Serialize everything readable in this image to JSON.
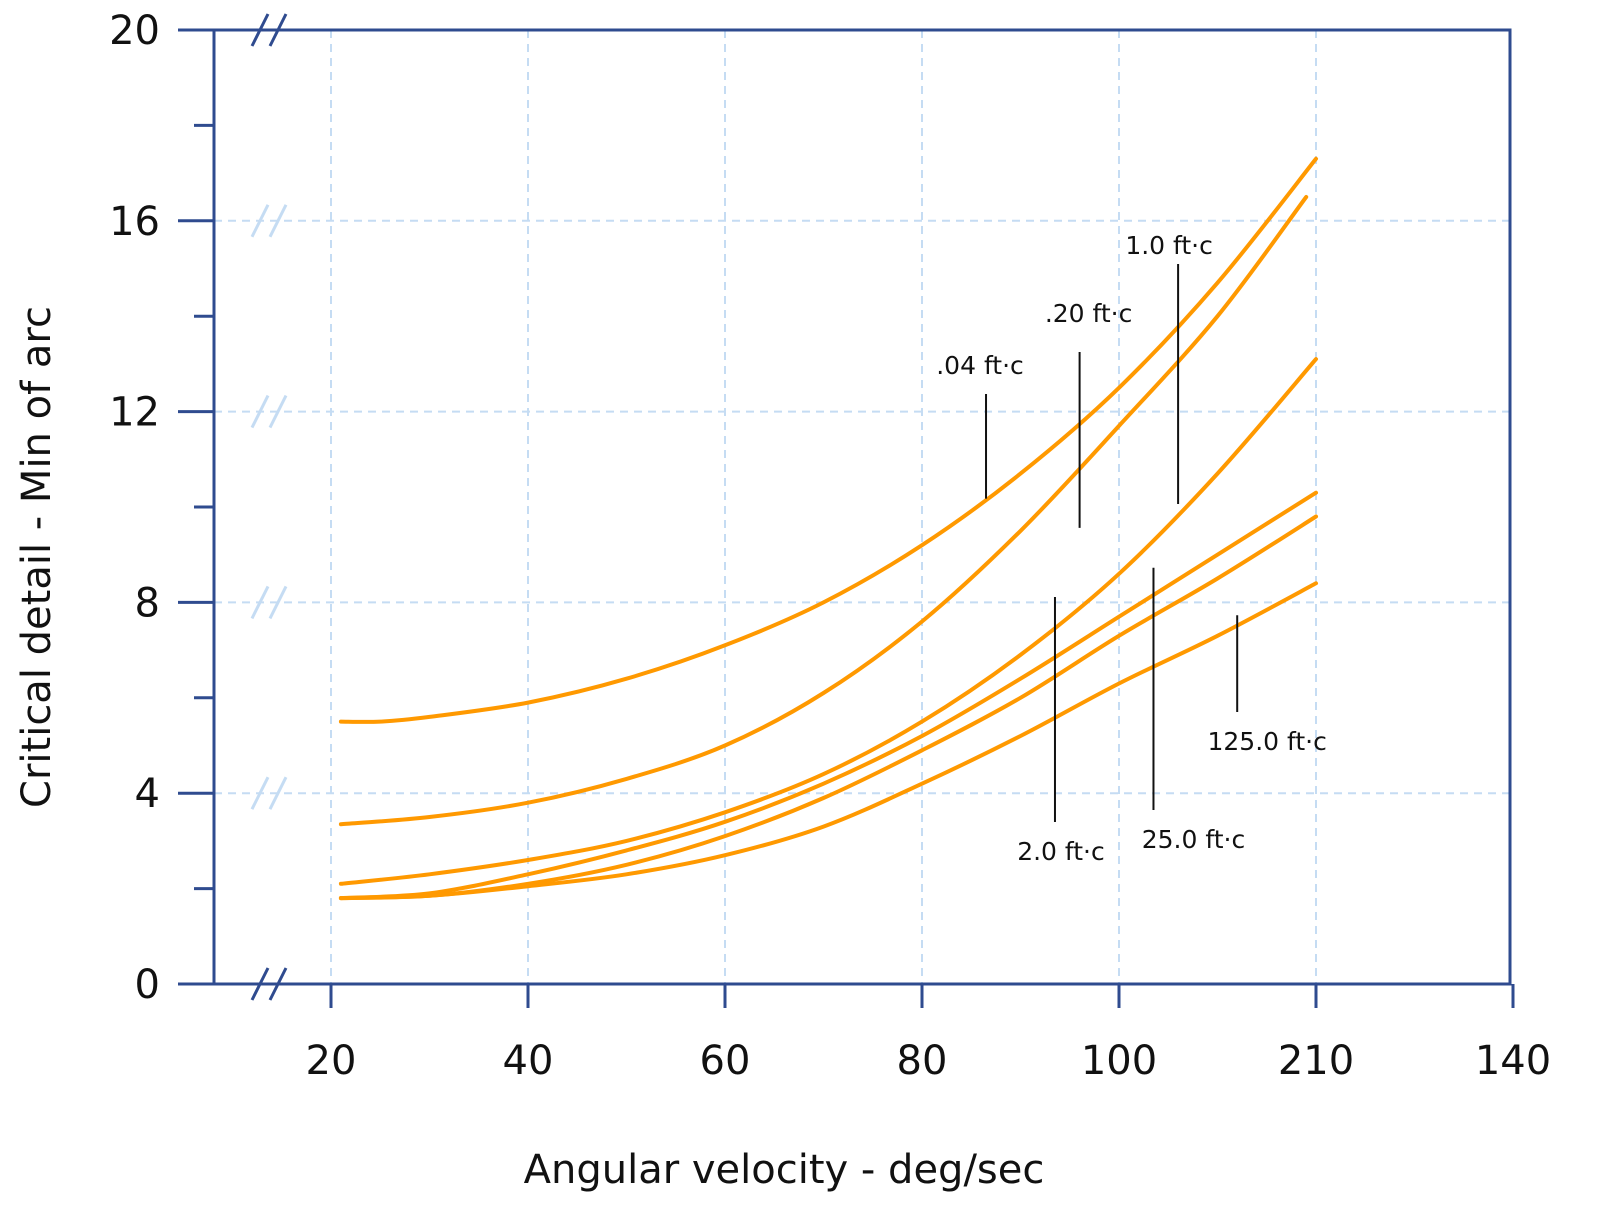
{
  "chart_data": {
    "type": "line",
    "title": "",
    "xlabel": "Angular velocity - deg/sec",
    "ylabel": "Critical detail - Min of arc",
    "x_tick_labels": [
      "20",
      "40",
      "60",
      "80",
      "100",
      "210",
      "140"
    ],
    "y_tick_labels": [
      "0",
      "4",
      "8",
      "12",
      "16",
      "20"
    ],
    "y_ticks": [
      0,
      4,
      8,
      12,
      16,
      20
    ],
    "ylim": [
      0,
      20
    ],
    "grid": true,
    "axis_break_marks": true,
    "colors": {
      "axis": "#2f4b8f",
      "grid": "#c5dcf3",
      "series": "#ff9900",
      "leader": "#111111"
    },
    "series": [
      {
        "name": ".04 ft·c",
        "x": [
          21,
          25,
          30,
          40,
          50,
          60,
          70,
          80,
          90,
          100,
          110,
          120
        ],
        "y": [
          5.5,
          5.5,
          5.6,
          5.9,
          6.4,
          7.1,
          8.0,
          9.2,
          10.7,
          12.5,
          14.7,
          17.3
        ]
      },
      {
        "name": ".20 ft·c",
        "x": [
          21,
          30,
          40,
          50,
          60,
          70,
          80,
          90,
          100,
          110,
          119
        ],
        "y": [
          3.35,
          3.5,
          3.8,
          4.3,
          5.0,
          6.1,
          7.6,
          9.5,
          11.7,
          14.0,
          16.5
        ]
      },
      {
        "name": "1.0 ft·c",
        "x": [
          21,
          30,
          40,
          50,
          60,
          70,
          80,
          90,
          100,
          110,
          120
        ],
        "y": [
          2.1,
          2.3,
          2.6,
          3.0,
          3.6,
          4.4,
          5.5,
          6.9,
          8.6,
          10.7,
          13.1
        ]
      },
      {
        "name": "2.0 ft·c",
        "x": [
          21,
          30,
          40,
          50,
          60,
          70,
          80,
          90,
          100,
          110,
          120
        ],
        "y": [
          1.8,
          1.9,
          2.3,
          2.8,
          3.4,
          4.2,
          5.2,
          6.4,
          7.7,
          9.0,
          10.3
        ]
      },
      {
        "name": "25.0 ft·c",
        "x": [
          21,
          30,
          40,
          50,
          60,
          70,
          80,
          90,
          100,
          110,
          120
        ],
        "y": [
          1.8,
          1.85,
          2.1,
          2.5,
          3.1,
          3.9,
          4.9,
          6.0,
          7.3,
          8.5,
          9.8
        ]
      },
      {
        "name": "125.0 ft·c",
        "x": [
          21,
          30,
          40,
          50,
          60,
          70,
          80,
          90,
          100,
          110,
          120
        ],
        "y": [
          1.8,
          1.85,
          2.05,
          2.3,
          2.7,
          3.3,
          4.2,
          5.2,
          6.3,
          7.3,
          8.4
        ]
      }
    ],
    "annotations": [
      {
        "text": ".04 ft·c",
        "series": 0,
        "at_x": 86.5
      },
      {
        "text": ".20 ft·c",
        "series": 1,
        "at_x": 96
      },
      {
        "text": "1.0 ft·c",
        "series": 2,
        "at_x": 106
      },
      {
        "text": "2.0 ft·c",
        "series": 3,
        "at_x": 93.5
      },
      {
        "text": "25.0 ft·c",
        "series": 4,
        "at_x": 103.5
      },
      {
        "text": "125.0 ft·c",
        "series": 5,
        "at_x": 112
      }
    ]
  }
}
